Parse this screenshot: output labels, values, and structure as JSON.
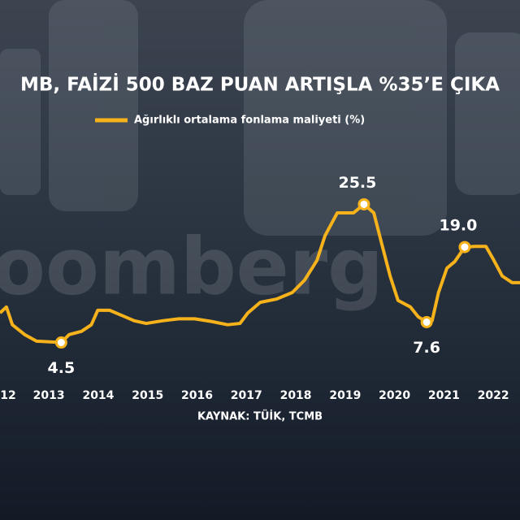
{
  "chart_data": {
    "type": "line",
    "title": "MB, FAİZİ 500 BAZ PUAN ARTIŞLA %35’E ÇIKA",
    "watermark": "oomberg",
    "source": "KAYNAK: TÜİK, TCMB",
    "x": [
      2012.01,
      2012.14,
      2012.26,
      2012.51,
      2012.75,
      2013.25,
      2013.41,
      2013.66,
      2013.86,
      2013.99,
      2014.23,
      2014.48,
      2014.73,
      2014.97,
      2015.3,
      2015.63,
      2015.95,
      2016.29,
      2016.62,
      2016.87,
      2017.03,
      2017.28,
      2017.61,
      2017.93,
      2018.18,
      2018.43,
      2018.59,
      2018.84,
      2019.17,
      2019.38,
      2019.58,
      2019.74,
      2019.91,
      2020.07,
      2020.32,
      2020.48,
      2020.65,
      2020.76,
      2020.89,
      2021.06,
      2021.22,
      2021.42,
      2021.63,
      2021.85,
      2022.01,
      2022.18,
      2022.38,
      2022.54
    ],
    "series": [
      {
        "name": "Ağırlıklı ortalama fonlama maliyeti (%)",
        "color": "#f5b21b",
        "values": [
          9.0,
          9.9,
          7.2,
          5.7,
          4.7,
          4.5,
          5.7,
          6.2,
          7.2,
          9.4,
          9.4,
          8.6,
          7.8,
          7.4,
          7.8,
          8.1,
          8.1,
          7.7,
          7.2,
          7.4,
          9.0,
          10.6,
          11.1,
          12.1,
          14.0,
          17.0,
          20.7,
          24.2,
          24.2,
          25.5,
          24.2,
          19.5,
          14.6,
          10.9,
          9.9,
          8.4,
          7.6,
          7.8,
          12.1,
          15.8,
          16.8,
          19.0,
          19.1,
          19.1,
          17.0,
          14.6,
          13.6,
          13.6
        ],
        "value_labels": [
          null,
          null,
          null,
          null,
          null,
          "4.5",
          null,
          null,
          null,
          null,
          null,
          null,
          null,
          null,
          null,
          null,
          null,
          null,
          null,
          null,
          null,
          null,
          null,
          null,
          null,
          null,
          null,
          null,
          null,
          "25.5",
          null,
          null,
          null,
          null,
          null,
          null,
          "7.6",
          null,
          null,
          null,
          null,
          "19.0",
          null,
          null,
          null,
          null,
          null,
          null
        ]
      }
    ],
    "xlim": [
      2012.01,
      2022.54
    ],
    "xticks": [
      {
        "value": 2012,
        "label": "12"
      },
      2013,
      2014,
      2015,
      2016,
      2017,
      2018,
      2019,
      2020,
      2021,
      2022
    ],
    "ylim": [
      0,
      30
    ]
  }
}
